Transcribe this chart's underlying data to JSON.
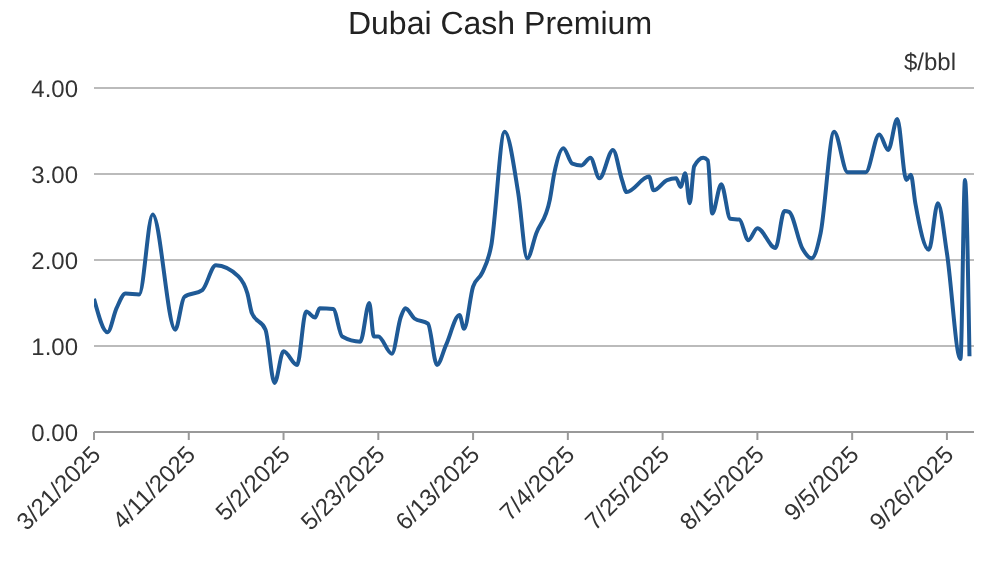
{
  "chart_data": {
    "type": "line",
    "title": "Dubai Cash Premium",
    "ylabel": "$/bbl",
    "x": [
      "2025-03-21",
      "2025-03-24",
      "2025-03-26",
      "2025-03-28",
      "2025-03-31",
      "2025-04-03",
      "2025-04-08",
      "2025-04-10",
      "2025-04-14",
      "2025-04-17",
      "2025-04-22",
      "2025-04-24",
      "2025-04-25",
      "2025-04-28",
      "2025-04-30",
      "2025-05-02",
      "2025-05-05",
      "2025-05-07",
      "2025-05-09",
      "2025-05-10",
      "2025-05-13",
      "2025-05-15",
      "2025-05-19",
      "2025-05-21",
      "2025-05-22",
      "2025-05-23",
      "2025-05-26",
      "2025-05-28",
      "2025-05-29",
      "2025-05-31",
      "2025-06-03",
      "2025-06-05",
      "2025-06-07",
      "2025-06-10",
      "2025-06-11",
      "2025-06-13",
      "2025-06-15",
      "2025-06-17",
      "2025-06-20",
      "2025-06-23",
      "2025-06-25",
      "2025-06-27",
      "2025-06-30",
      "2025-07-01",
      "2025-07-03",
      "2025-07-05",
      "2025-07-07",
      "2025-07-09",
      "2025-07-11",
      "2025-07-14",
      "2025-07-16",
      "2025-07-17",
      "2025-07-22",
      "2025-07-23",
      "2025-07-26",
      "2025-07-28",
      "2025-07-29",
      "2025-07-30",
      "2025-07-31",
      "2025-08-01",
      "2025-08-03",
      "2025-08-04",
      "2025-08-05",
      "2025-08-07",
      "2025-08-09",
      "2025-08-11",
      "2025-08-13",
      "2025-08-15",
      "2025-08-19",
      "2025-08-21",
      "2025-08-22",
      "2025-08-25",
      "2025-08-27",
      "2025-08-29",
      "2025-09-01",
      "2025-09-04",
      "2025-09-08",
      "2025-09-11",
      "2025-09-13",
      "2025-09-15",
      "2025-09-17",
      "2025-09-18",
      "2025-09-19",
      "2025-09-22",
      "2025-09-24",
      "2025-09-26",
      "2025-09-29",
      "2025-09-30",
      "2025-10-01"
    ],
    "series": [
      {
        "color": "#1f5a96",
        "values": [
          1.55,
          1.16,
          1.44,
          1.61,
          1.6,
          2.53,
          1.19,
          1.57,
          1.65,
          1.94,
          1.81,
          1.61,
          1.38,
          1.19,
          0.57,
          0.94,
          0.78,
          1.4,
          1.33,
          1.44,
          1.43,
          1.11,
          1.05,
          1.5,
          1.11,
          1.11,
          0.91,
          1.34,
          1.44,
          1.32,
          1.26,
          0.78,
          1.01,
          1.36,
          1.2,
          1.69,
          1.85,
          2.16,
          3.49,
          2.78,
          2.02,
          2.31,
          2.7,
          3.01,
          3.3,
          3.12,
          3.1,
          3.19,
          2.95,
          3.28,
          2.93,
          2.79,
          2.97,
          2.81,
          2.93,
          2.95,
          2.85,
          3.01,
          2.66,
          3.09,
          3.19,
          3.16,
          2.54,
          2.88,
          2.48,
          2.47,
          2.23,
          2.37,
          2.14,
          2.57,
          2.56,
          2.13,
          2.02,
          2.31,
          3.49,
          3.02,
          3.02,
          3.46,
          3.28,
          3.64,
          2.93,
          2.99,
          2.66,
          2.12,
          2.66,
          2.08,
          0.85,
          2.93,
          0.88
        ]
      }
    ],
    "xlim": [
      "2025-03-21",
      "2025-10-02"
    ],
    "xticks": [
      {
        "value": "2025-03-21",
        "label": "3/21/2025"
      },
      {
        "value": "2025-04-11",
        "label": "4/11/2025"
      },
      {
        "value": "2025-05-02",
        "label": "5/2/2025"
      },
      {
        "value": "2025-05-23",
        "label": "5/23/2025"
      },
      {
        "value": "2025-06-13",
        "label": "6/13/2025"
      },
      {
        "value": "2025-07-04",
        "label": "7/4/2025"
      },
      {
        "value": "2025-07-25",
        "label": "7/25/2025"
      },
      {
        "value": "2025-08-15",
        "label": "8/15/2025"
      },
      {
        "value": "2025-09-05",
        "label": "9/5/2025"
      },
      {
        "value": "2025-09-26",
        "label": "9/26/2025"
      }
    ],
    "ylim": [
      0,
      4
    ],
    "yticks": [
      {
        "value": 0,
        "label": "0.00"
      },
      {
        "value": 1,
        "label": "1.00"
      },
      {
        "value": 2,
        "label": "2.00"
      },
      {
        "value": 3,
        "label": "3.00"
      },
      {
        "value": 4,
        "label": "4.00"
      }
    ],
    "grid": "y",
    "legend": false,
    "marker": "none",
    "line_style": "solid"
  }
}
